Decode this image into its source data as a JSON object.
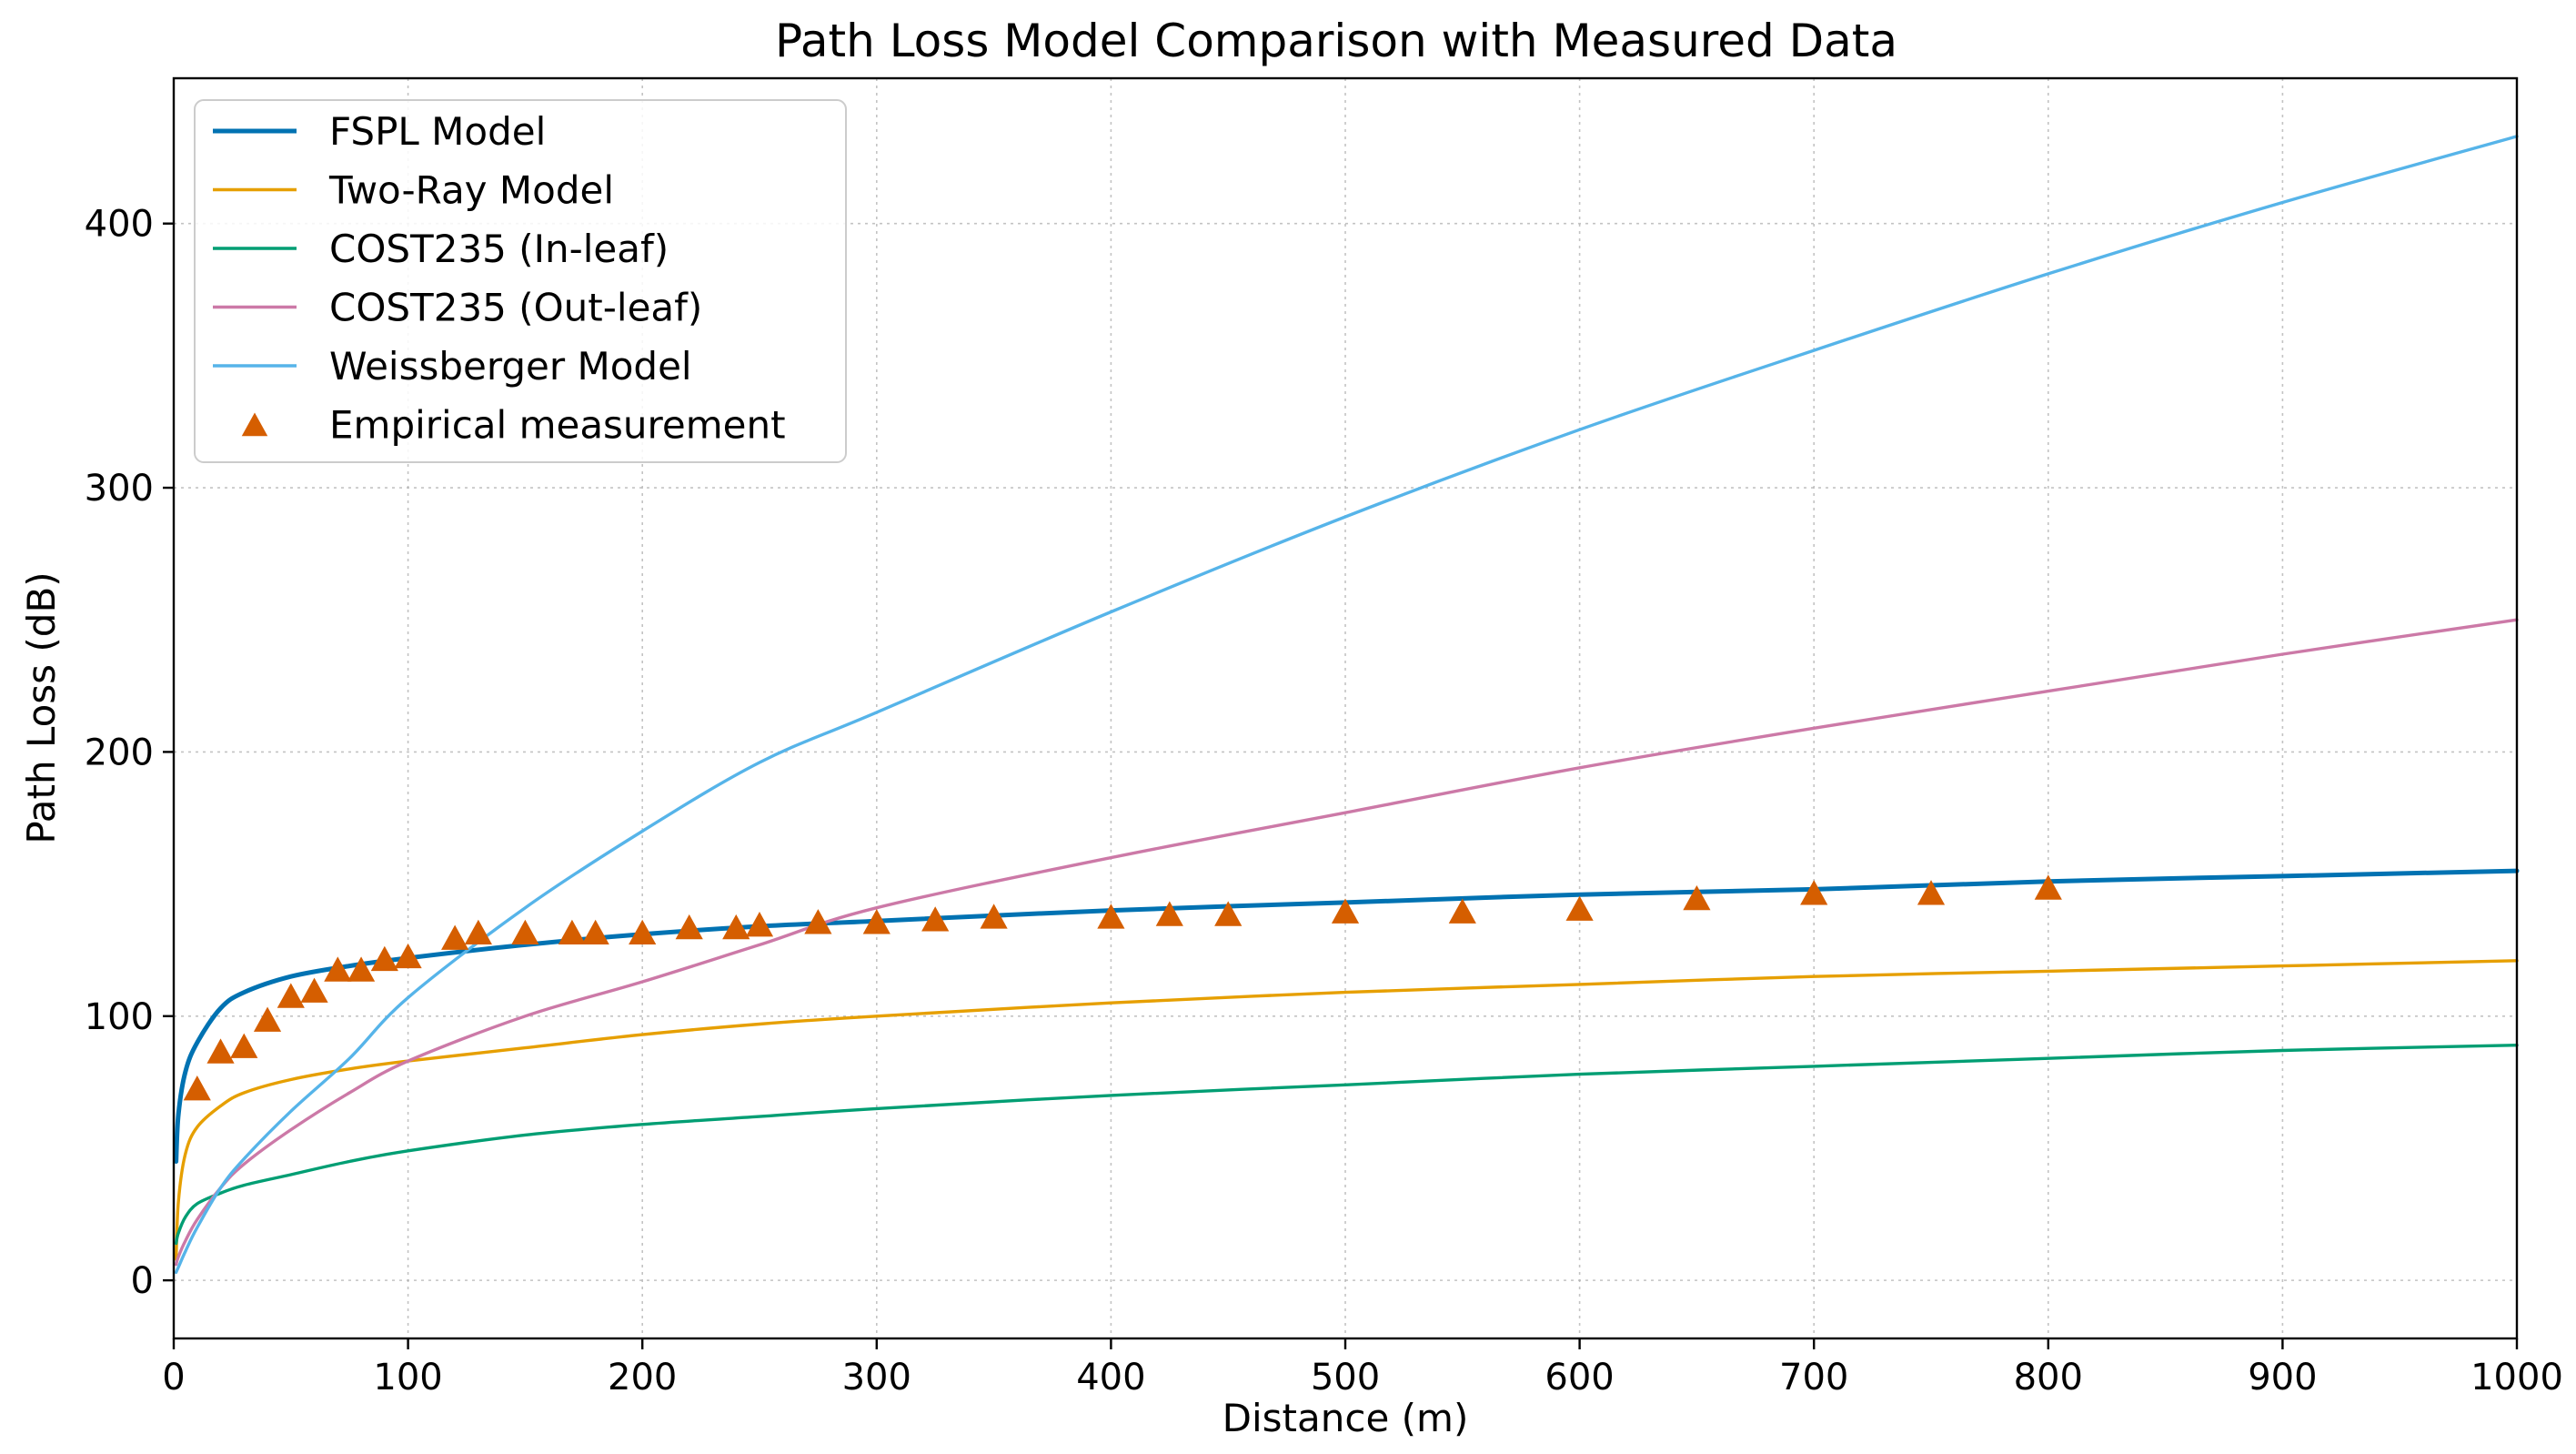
{
  "chart_data": {
    "type": "line",
    "title": "Path Loss Model Comparison with Measured Data",
    "xlabel": "Distance (m)",
    "ylabel": "Path Loss (dB)",
    "xlim": [
      0,
      1000
    ],
    "ylim": [
      -22,
      455
    ],
    "xticks": [
      0,
      100,
      200,
      300,
      400,
      500,
      600,
      700,
      800,
      900,
      1000
    ],
    "yticks": [
      0,
      100,
      200,
      300,
      400
    ],
    "grid": true,
    "legend_position": "top-left",
    "series": [
      {
        "name": "FSPL Model",
        "type": "line",
        "color": "#0072b2",
        "x": [
          1,
          2,
          5,
          10,
          20,
          30,
          50,
          75,
          100,
          150,
          200,
          250,
          300,
          400,
          500,
          600,
          700,
          800,
          900,
          1000
        ],
        "y": [
          45,
          63,
          79,
          90,
          103,
          109,
          115,
          119,
          122,
          127,
          131,
          134,
          136,
          140,
          143,
          146,
          148,
          151,
          153,
          155
        ]
      },
      {
        "name": "Two-Ray Model",
        "type": "line",
        "color": "#e69f00",
        "x": [
          1,
          2,
          5,
          10,
          20,
          30,
          50,
          75,
          100,
          150,
          200,
          250,
          300,
          400,
          500,
          600,
          700,
          800,
          900,
          1000
        ],
        "y": [
          8,
          30,
          48,
          58,
          66,
          71,
          76,
          80,
          83,
          88,
          93,
          97,
          100,
          105,
          109,
          112,
          115,
          117,
          119,
          121
        ]
      },
      {
        "name": "COST235 (In-leaf)",
        "type": "line",
        "color": "#009e73",
        "x": [
          1,
          2,
          5,
          10,
          20,
          30,
          50,
          75,
          100,
          150,
          200,
          250,
          300,
          400,
          500,
          600,
          700,
          800,
          900,
          1000
        ],
        "y": [
          14,
          18,
          24,
          29,
          33,
          36,
          40,
          45,
          49,
          55,
          59,
          62,
          65,
          70,
          74,
          78,
          81,
          84,
          87,
          89
        ]
      },
      {
        "name": "COST235 (Out-leaf)",
        "type": "line",
        "color": "#cc79a7",
        "x": [
          1,
          2,
          5,
          10,
          20,
          30,
          50,
          75,
          100,
          150,
          200,
          250,
          300,
          400,
          500,
          600,
          700,
          800,
          900,
          1000
        ],
        "y": [
          6,
          9,
          15,
          23,
          35,
          44,
          57,
          71,
          83,
          100,
          113,
          127,
          141,
          160,
          177,
          194,
          209,
          223,
          237,
          250
        ]
      },
      {
        "name": "Weissberger Model",
        "type": "line",
        "color": "#56b4e9",
        "x": [
          1,
          2,
          5,
          10,
          20,
          30,
          50,
          75,
          100,
          150,
          200,
          250,
          300,
          400,
          500,
          600,
          700,
          800,
          900,
          1000
        ],
        "y": [
          3,
          5,
          11,
          20,
          35,
          46,
          64,
          84,
          107,
          141,
          170,
          196,
          215,
          253,
          289,
          322,
          352,
          381,
          408,
          433
        ]
      },
      {
        "name": "Empirical measurement",
        "type": "scatter",
        "marker": "triangle",
        "color": "#d55e00",
        "x": [
          10,
          20,
          30,
          40,
          50,
          60,
          70,
          80,
          90,
          100,
          120,
          130,
          150,
          170,
          180,
          200,
          220,
          240,
          250,
          275,
          300,
          325,
          350,
          400,
          425,
          450,
          500,
          550,
          600,
          650,
          700,
          750,
          800
        ],
        "y": [
          72,
          86,
          88,
          98,
          107,
          109,
          117,
          117,
          121,
          122,
          129,
          131,
          131,
          131,
          131,
          131,
          133,
          133,
          134,
          135,
          135,
          136,
          137,
          137,
          138,
          138,
          139,
          139,
          140,
          144,
          146,
          146,
          148
        ]
      }
    ]
  }
}
